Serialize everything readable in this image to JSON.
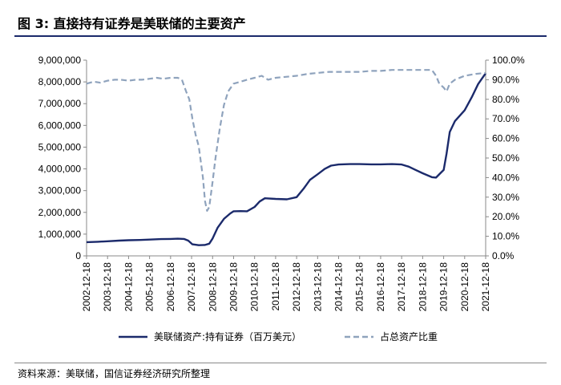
{
  "header": {
    "title": "图 3:  直接持有证券是美联储的主要资产"
  },
  "footer": {
    "source": "资料来源：美联储，国信证券经济研究所整理"
  },
  "chart_data": {
    "type": "line",
    "title": "",
    "xlabel": "",
    "ylabel": "",
    "categories": [
      "2002-12-18",
      "2003-12-18",
      "2004-12-18",
      "2005-12-18",
      "2006-12-18",
      "2007-12-18",
      "2008-12-18",
      "2009-12-18",
      "2010-12-18",
      "2011-12-18",
      "2012-12-18",
      "2013-12-18",
      "2014-12-18",
      "2015-12-18",
      "2016-12-18",
      "2017-12-18",
      "2018-12-18",
      "2019-12-18",
      "2020-12-18",
      "2021-12-18"
    ],
    "y_left": {
      "min": 0,
      "max": 9000000,
      "step": 1000000,
      "ticks": [
        "0",
        "1,000,000",
        "2,000,000",
        "3,000,000",
        "4,000,000",
        "5,000,000",
        "6,000,000",
        "7,000,000",
        "8,000,000",
        "9,000,000"
      ]
    },
    "y_right": {
      "min": 0,
      "max": 100,
      "step": 10,
      "ticks": [
        "0.0%",
        "10.0%",
        "20.0%",
        "30.0%",
        "40.0%",
        "50.0%",
        "60.0%",
        "70.0%",
        "80.0%",
        "90.0%",
        "100.0%"
      ]
    },
    "legend_position": "bottom",
    "grid": false,
    "series": [
      {
        "name": "美联储资产:持有证券（百万美元）",
        "axis": "left",
        "color": "#1b2a6b",
        "style": "solid",
        "points": [
          [
            2002.96,
            630000
          ],
          [
            2003.5,
            650000
          ],
          [
            2003.96,
            670000
          ],
          [
            2004.5,
            700000
          ],
          [
            2004.96,
            720000
          ],
          [
            2005.5,
            730000
          ],
          [
            2005.96,
            750000
          ],
          [
            2006.5,
            770000
          ],
          [
            2006.96,
            780000
          ],
          [
            2007.3,
            790000
          ],
          [
            2007.6,
            780000
          ],
          [
            2007.8,
            700000
          ],
          [
            2008.0,
            530000
          ],
          [
            2008.3,
            490000
          ],
          [
            2008.6,
            500000
          ],
          [
            2008.8,
            560000
          ],
          [
            2008.96,
            800000
          ],
          [
            2009.2,
            1300000
          ],
          [
            2009.5,
            1700000
          ],
          [
            2009.8,
            1950000
          ],
          [
            2009.96,
            2050000
          ],
          [
            2010.3,
            2060000
          ],
          [
            2010.6,
            2050000
          ],
          [
            2010.96,
            2250000
          ],
          [
            2011.2,
            2500000
          ],
          [
            2011.45,
            2650000
          ],
          [
            2011.96,
            2620000
          ],
          [
            2012.5,
            2600000
          ],
          [
            2012.96,
            2700000
          ],
          [
            2013.3,
            3100000
          ],
          [
            2013.6,
            3500000
          ],
          [
            2013.96,
            3750000
          ],
          [
            2014.3,
            4000000
          ],
          [
            2014.6,
            4150000
          ],
          [
            2014.96,
            4200000
          ],
          [
            2015.5,
            4220000
          ],
          [
            2015.96,
            4220000
          ],
          [
            2016.5,
            4210000
          ],
          [
            2016.96,
            4210000
          ],
          [
            2017.5,
            4220000
          ],
          [
            2017.96,
            4200000
          ],
          [
            2018.3,
            4100000
          ],
          [
            2018.6,
            3960000
          ],
          [
            2018.96,
            3800000
          ],
          [
            2019.4,
            3620000
          ],
          [
            2019.6,
            3600000
          ],
          [
            2019.8,
            3800000
          ],
          [
            2019.96,
            3950000
          ],
          [
            2020.1,
            4700000
          ],
          [
            2020.25,
            5700000
          ],
          [
            2020.5,
            6200000
          ],
          [
            2020.96,
            6700000
          ],
          [
            2021.3,
            7300000
          ],
          [
            2021.6,
            7900000
          ],
          [
            2021.96,
            8400000
          ]
        ]
      },
      {
        "name": "占总资产比重",
        "axis": "right",
        "color": "#8fa3bd",
        "style": "dashed",
        "points": [
          [
            2002.96,
            88
          ],
          [
            2003.3,
            89
          ],
          [
            2003.6,
            88.5
          ],
          [
            2003.96,
            89.5
          ],
          [
            2004.3,
            90
          ],
          [
            2004.6,
            90
          ],
          [
            2004.96,
            89.5
          ],
          [
            2005.3,
            90
          ],
          [
            2005.6,
            90
          ],
          [
            2005.96,
            90.5
          ],
          [
            2006.3,
            91
          ],
          [
            2006.6,
            90.5
          ],
          [
            2006.96,
            91
          ],
          [
            2007.3,
            91
          ],
          [
            2007.5,
            90
          ],
          [
            2007.7,
            84
          ],
          [
            2007.85,
            80
          ],
          [
            2008.0,
            70
          ],
          [
            2008.15,
            62
          ],
          [
            2008.3,
            56
          ],
          [
            2008.5,
            40
          ],
          [
            2008.6,
            28
          ],
          [
            2008.7,
            23
          ],
          [
            2008.8,
            25
          ],
          [
            2008.96,
            38
          ],
          [
            2009.1,
            50
          ],
          [
            2009.3,
            65
          ],
          [
            2009.5,
            77
          ],
          [
            2009.7,
            84
          ],
          [
            2009.96,
            88
          ],
          [
            2010.3,
            89
          ],
          [
            2010.6,
            90
          ],
          [
            2010.96,
            91
          ],
          [
            2011.3,
            92
          ],
          [
            2011.6,
            90
          ],
          [
            2011.96,
            91
          ],
          [
            2012.5,
            91.5
          ],
          [
            2012.96,
            92
          ],
          [
            2013.5,
            93
          ],
          [
            2013.96,
            93.5
          ],
          [
            2014.5,
            94
          ],
          [
            2014.96,
            94
          ],
          [
            2015.5,
            94
          ],
          [
            2015.96,
            94
          ],
          [
            2016.5,
            94.5
          ],
          [
            2016.96,
            94.5
          ],
          [
            2017.5,
            95
          ],
          [
            2017.96,
            95
          ],
          [
            2018.5,
            95
          ],
          [
            2018.96,
            95
          ],
          [
            2019.4,
            95
          ],
          [
            2019.6,
            92
          ],
          [
            2019.75,
            88
          ],
          [
            2019.96,
            86
          ],
          [
            2020.1,
            84
          ],
          [
            2020.25,
            88
          ],
          [
            2020.5,
            90
          ],
          [
            2020.96,
            92
          ],
          [
            2021.5,
            93
          ],
          [
            2021.96,
            93.5
          ]
        ]
      }
    ]
  }
}
